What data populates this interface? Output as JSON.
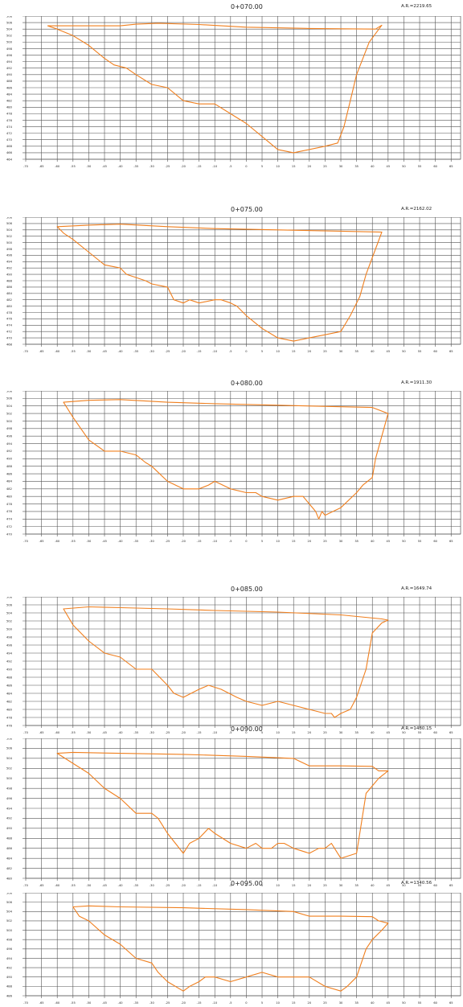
{
  "colors": {
    "profile": "#f07f1e",
    "grid": "#555555",
    "text": "#222222",
    "background": "#ffffff"
  },
  "x_ticks": [
    -70,
    -65,
    -60,
    -55,
    -50,
    -45,
    -40,
    -35,
    -30,
    -25,
    -20,
    -15,
    -10,
    -5,
    0,
    5,
    10,
    15,
    20,
    25,
    30,
    35,
    40,
    45,
    50,
    55,
    60,
    65
  ],
  "chart_data": [
    {
      "type": "line",
      "title": "0+070.00",
      "area_label": "A.R.=2219.65",
      "y_ticks": [
        464,
        466,
        468,
        470,
        472,
        474,
        476,
        478,
        480,
        482,
        484,
        486,
        488,
        490,
        492,
        494,
        496,
        498,
        500,
        502,
        504,
        506,
        508
      ],
      "ylim": [
        464,
        508
      ],
      "xlim": [
        -70,
        68
      ],
      "profile": [
        [
          -40,
          505
        ],
        [
          -35,
          505.5
        ],
        [
          -28,
          505.8
        ],
        [
          -15,
          505.4
        ],
        [
          0,
          504.6
        ],
        [
          20,
          504.2
        ],
        [
          41,
          504
        ],
        [
          43,
          505.2
        ],
        [
          39,
          500
        ],
        [
          35,
          490
        ],
        [
          33,
          482
        ],
        [
          31,
          474
        ],
        [
          29,
          469
        ],
        [
          25,
          468
        ],
        [
          15,
          466
        ],
        [
          10,
          467
        ],
        [
          5,
          471
        ],
        [
          0,
          475
        ],
        [
          -5,
          478
        ],
        [
          -10,
          481
        ],
        [
          -15,
          481
        ],
        [
          -20,
          482
        ],
        [
          -25,
          486
        ],
        [
          -30,
          487
        ],
        [
          -35,
          490
        ],
        [
          -38,
          492
        ],
        [
          -42,
          493
        ],
        [
          -45,
          495
        ],
        [
          -50,
          499
        ],
        [
          -55,
          502
        ],
        [
          -60,
          504
        ],
        [
          -63,
          505
        ]
      ]
    },
    {
      "type": "line",
      "title": "0+075.00",
      "area_label": "A.R.=2162.02",
      "y_ticks": [
        468,
        470,
        472,
        474,
        476,
        478,
        480,
        482,
        484,
        486,
        488,
        490,
        492,
        494,
        496,
        498,
        500,
        502,
        504,
        506,
        508
      ],
      "ylim": [
        468,
        508
      ],
      "xlim": [
        -70,
        68
      ],
      "profile": [
        [
          -60,
          505
        ],
        [
          -50,
          505.5
        ],
        [
          -40,
          505.8
        ],
        [
          -25,
          505
        ],
        [
          -10,
          504.4
        ],
        [
          10,
          504
        ],
        [
          30,
          503.6
        ],
        [
          43,
          503.3
        ],
        [
          41,
          498
        ],
        [
          38,
          490
        ],
        [
          36,
          483
        ],
        [
          33,
          477
        ],
        [
          30,
          472
        ],
        [
          25,
          471
        ],
        [
          20,
          470
        ],
        [
          15,
          469
        ],
        [
          10,
          470
        ],
        [
          5,
          473
        ],
        [
          0,
          477
        ],
        [
          -3,
          480
        ],
        [
          -5,
          481
        ],
        [
          -8,
          482
        ],
        [
          -10,
          482
        ],
        [
          -15,
          481
        ],
        [
          -18,
          482
        ],
        [
          -20,
          481
        ],
        [
          -23,
          482
        ],
        [
          -25,
          486
        ],
        [
          -30,
          487
        ],
        [
          -32,
          488
        ],
        [
          -35,
          489
        ],
        [
          -38,
          490
        ],
        [
          -40,
          492
        ],
        [
          -45,
          493
        ],
        [
          -50,
          497
        ],
        [
          -55,
          501
        ],
        [
          -58,
          503
        ],
        [
          -60,
          505
        ]
      ]
    },
    {
      "type": "line",
      "title": "0+080.00",
      "area_label": "A.R.=1911.30",
      "y_ticks": [
        470,
        472,
        474,
        476,
        478,
        480,
        482,
        484,
        486,
        488,
        490,
        492,
        494,
        496,
        498,
        500,
        502,
        504,
        506,
        508
      ],
      "ylim": [
        470,
        508
      ],
      "xlim": [
        -70,
        68
      ],
      "profile": [
        [
          -58,
          505
        ],
        [
          -50,
          505.5
        ],
        [
          -40,
          505.7
        ],
        [
          -25,
          505
        ],
        [
          -10,
          504.6
        ],
        [
          10,
          504.2
        ],
        [
          30,
          503.8
        ],
        [
          40,
          503.6
        ],
        [
          45,
          502
        ],
        [
          43,
          496
        ],
        [
          41,
          490
        ],
        [
          40,
          485
        ],
        [
          37,
          483
        ],
        [
          35,
          481
        ],
        [
          30,
          477
        ],
        [
          25,
          475
        ],
        [
          24,
          476
        ],
        [
          23,
          474
        ],
        [
          22,
          476
        ],
        [
          20,
          478
        ],
        [
          18,
          480
        ],
        [
          15,
          480
        ],
        [
          10,
          479
        ],
        [
          5,
          480
        ],
        [
          3,
          481
        ],
        [
          0,
          481
        ],
        [
          -5,
          482
        ],
        [
          -10,
          484
        ],
        [
          -12,
          483
        ],
        [
          -15,
          482
        ],
        [
          -20,
          482
        ],
        [
          -25,
          484
        ],
        [
          -30,
          488
        ],
        [
          -32,
          489
        ],
        [
          -35,
          491
        ],
        [
          -40,
          492
        ],
        [
          -45,
          492
        ],
        [
          -50,
          495
        ],
        [
          -55,
          501
        ],
        [
          -58,
          505
        ]
      ]
    },
    {
      "type": "line",
      "title": "0+085.00",
      "area_label": "A.R.=1649.74",
      "y_ticks": [
        476,
        478,
        480,
        482,
        484,
        486,
        488,
        490,
        492,
        494,
        496,
        498,
        500,
        502,
        504,
        506,
        508
      ],
      "ylim": [
        476,
        508
      ],
      "xlim": [
        -70,
        68
      ],
      "profile": [
        [
          -58,
          505
        ],
        [
          -50,
          505.5
        ],
        [
          -40,
          505.3
        ],
        [
          -25,
          505
        ],
        [
          -10,
          504.6
        ],
        [
          10,
          504.2
        ],
        [
          30,
          503.5
        ],
        [
          43,
          502.5
        ],
        [
          45,
          502.2
        ],
        [
          43,
          501.5
        ],
        [
          40,
          499
        ],
        [
          38,
          490
        ],
        [
          35,
          483
        ],
        [
          33,
          480
        ],
        [
          30,
          479
        ],
        [
          28,
          478
        ],
        [
          27,
          479
        ],
        [
          25,
          479
        ],
        [
          20,
          480
        ],
        [
          15,
          481
        ],
        [
          10,
          482
        ],
        [
          5,
          481
        ],
        [
          0,
          482
        ],
        [
          -3,
          483
        ],
        [
          -8,
          485
        ],
        [
          -12,
          486
        ],
        [
          -15,
          485
        ],
        [
          -20,
          483
        ],
        [
          -23,
          484
        ],
        [
          -25,
          486
        ],
        [
          -30,
          490
        ],
        [
          -35,
          490
        ],
        [
          -40,
          493
        ],
        [
          -45,
          494
        ],
        [
          -50,
          497
        ],
        [
          -55,
          501
        ],
        [
          -58,
          505
        ]
      ]
    },
    {
      "type": "line",
      "title": "0+090.00",
      "area_label": "A.R.=1480.15",
      "y_ticks": [
        480,
        482,
        484,
        486,
        488,
        490,
        492,
        494,
        496,
        498,
        500,
        502,
        504,
        506,
        508
      ],
      "ylim": [
        480,
        508
      ],
      "xlim": [
        -70,
        68
      ],
      "profile": [
        [
          -60,
          505
        ],
        [
          -55,
          505.2
        ],
        [
          -40,
          505
        ],
        [
          -20,
          504.8
        ],
        [
          0,
          504.4
        ],
        [
          15,
          504
        ],
        [
          20,
          502.5
        ],
        [
          30,
          502.5
        ],
        [
          40,
          502.4
        ],
        [
          42,
          501.5
        ],
        [
          45,
          501.5
        ],
        [
          42,
          500
        ],
        [
          38,
          497
        ],
        [
          36,
          489
        ],
        [
          35,
          485
        ],
        [
          30,
          484
        ],
        [
          29,
          485
        ],
        [
          28,
          486
        ],
        [
          27,
          487
        ],
        [
          25,
          486
        ],
        [
          23,
          486
        ],
        [
          20,
          485
        ],
        [
          15,
          486
        ],
        [
          12,
          487
        ],
        [
          10,
          487
        ],
        [
          8,
          486
        ],
        [
          5,
          486
        ],
        [
          3,
          487
        ],
        [
          0,
          486
        ],
        [
          -5,
          487
        ],
        [
          -10,
          489
        ],
        [
          -12,
          490
        ],
        [
          -15,
          488
        ],
        [
          -18,
          487
        ],
        [
          -20,
          485
        ],
        [
          -25,
          489
        ],
        [
          -28,
          492
        ],
        [
          -30,
          493
        ],
        [
          -35,
          493
        ],
        [
          -40,
          496
        ],
        [
          -45,
          498
        ],
        [
          -50,
          501
        ],
        [
          -55,
          503
        ],
        [
          -60,
          505
        ]
      ]
    },
    {
      "type": "line",
      "title": "0+095.00",
      "area_label": "A.R.=1340.56",
      "y_ticks": [
        486,
        488,
        490,
        492,
        494,
        496,
        498,
        500,
        502,
        504,
        506,
        508
      ],
      "ylim": [
        486,
        508
      ],
      "xlim": [
        -70,
        68
      ],
      "profile": [
        [
          -55,
          505
        ],
        [
          -50,
          505.2
        ],
        [
          -40,
          505
        ],
        [
          -20,
          504.8
        ],
        [
          0,
          504.4
        ],
        [
          15,
          504
        ],
        [
          20,
          503
        ],
        [
          30,
          503
        ],
        [
          40,
          502.9
        ],
        [
          42,
          502
        ],
        [
          45,
          501.5
        ],
        [
          43,
          500
        ],
        [
          40,
          498
        ],
        [
          38,
          496
        ],
        [
          35,
          490
        ],
        [
          32,
          488
        ],
        [
          30,
          487
        ],
        [
          25,
          488
        ],
        [
          20,
          490
        ],
        [
          15,
          490
        ],
        [
          10,
          490
        ],
        [
          5,
          491
        ],
        [
          0,
          490
        ],
        [
          -5,
          489
        ],
        [
          -10,
          490
        ],
        [
          -13,
          490
        ],
        [
          -15,
          489
        ],
        [
          -18,
          488
        ],
        [
          -20,
          487
        ],
        [
          -25,
          489
        ],
        [
          -28,
          491
        ],
        [
          -30,
          493
        ],
        [
          -35,
          494
        ],
        [
          -40,
          497
        ],
        [
          -45,
          499
        ],
        [
          -50,
          502
        ],
        [
          -53,
          503
        ],
        [
          -55,
          505
        ]
      ]
    }
  ]
}
